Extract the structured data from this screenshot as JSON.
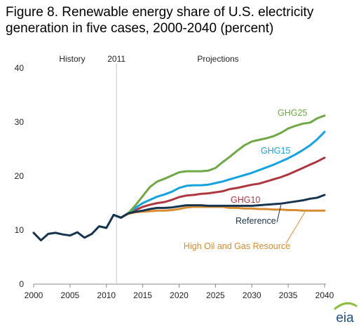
{
  "chart_data": {
    "type": "line",
    "title": "Figure 8. Renewable energy share of U.S. electricity generation in five cases, 2000-2040 (percent)",
    "xlabel": "",
    "ylabel": "",
    "xlim": [
      2000,
      2040
    ],
    "ylim": [
      0,
      40
    ],
    "x_ticks": [
      2000,
      2005,
      2010,
      2015,
      2020,
      2025,
      2030,
      2035,
      2040
    ],
    "y_ticks": [
      0,
      10,
      20,
      30,
      40
    ],
    "grid": false,
    "annotations": {
      "history": "History",
      "divider_year": "2011",
      "projections": "Projections"
    },
    "history": {
      "color": "#17344f",
      "x": [
        2000,
        2001,
        2002,
        2003,
        2004,
        2005,
        2006,
        2007,
        2008,
        2009,
        2010,
        2011
      ],
      "values": [
        9.5,
        8.1,
        9.3,
        9.5,
        9.2,
        9.0,
        9.6,
        8.6,
        9.3,
        10.7,
        10.4,
        12.8
      ]
    },
    "series": [
      {
        "name": "GHG25",
        "color": "#70a845",
        "x": [
          2011,
          2012,
          2013,
          2014,
          2015,
          2016,
          2017,
          2018,
          2019,
          2020,
          2021,
          2022,
          2023,
          2024,
          2025,
          2026,
          2027,
          2028,
          2029,
          2030,
          2031,
          2032,
          2033,
          2034,
          2035,
          2036,
          2037,
          2038,
          2039,
          2040
        ],
        "values": [
          12.8,
          12.3,
          13.1,
          14.6,
          16.3,
          18.0,
          19.0,
          19.5,
          20.1,
          20.7,
          20.9,
          20.9,
          20.9,
          21.0,
          21.5,
          22.6,
          23.6,
          24.7,
          25.7,
          26.4,
          26.7,
          27.0,
          27.4,
          28.0,
          28.8,
          29.3,
          29.7,
          29.9,
          30.7,
          31.2
        ]
      },
      {
        "name": "GHG15",
        "color": "#14a3e0",
        "x": [
          2011,
          2012,
          2013,
          2014,
          2015,
          2016,
          2017,
          2018,
          2019,
          2020,
          2021,
          2022,
          2023,
          2024,
          2025,
          2026,
          2027,
          2028,
          2029,
          2030,
          2031,
          2032,
          2033,
          2034,
          2035,
          2036,
          2037,
          2038,
          2039,
          2040
        ],
        "values": [
          12.8,
          12.3,
          13.1,
          14.1,
          15.0,
          15.6,
          16.2,
          16.6,
          17.1,
          17.8,
          18.2,
          18.3,
          18.3,
          18.4,
          18.7,
          19.0,
          19.4,
          19.8,
          20.2,
          20.6,
          21.1,
          21.6,
          22.1,
          22.7,
          23.3,
          24.0,
          24.8,
          25.7,
          26.8,
          28.2
        ]
      },
      {
        "name": "GHG10",
        "color": "#ad3740",
        "x": [
          2011,
          2012,
          2013,
          2014,
          2015,
          2016,
          2017,
          2018,
          2019,
          2020,
          2021,
          2022,
          2023,
          2024,
          2025,
          2026,
          2027,
          2028,
          2029,
          2030,
          2031,
          2032,
          2033,
          2034,
          2035,
          2036,
          2037,
          2038,
          2039,
          2040
        ],
        "values": [
          12.8,
          12.3,
          13.1,
          13.7,
          14.3,
          14.7,
          15.0,
          15.2,
          15.6,
          16.1,
          16.4,
          16.5,
          16.7,
          16.8,
          17.0,
          17.2,
          17.6,
          17.8,
          18.1,
          18.4,
          18.6,
          19.0,
          19.4,
          19.8,
          20.3,
          20.9,
          21.5,
          22.1,
          22.7,
          23.4
        ]
      },
      {
        "name": "Reference",
        "color": "#17344f",
        "x": [
          2011,
          2012,
          2013,
          2014,
          2015,
          2016,
          2017,
          2018,
          2019,
          2020,
          2021,
          2022,
          2023,
          2024,
          2025,
          2026,
          2027,
          2028,
          2029,
          2030,
          2031,
          2032,
          2033,
          2034,
          2035,
          2036,
          2037,
          2038,
          2039,
          2040
        ],
        "values": [
          12.8,
          12.3,
          13.1,
          13.4,
          13.6,
          13.9,
          14.1,
          14.1,
          14.2,
          14.4,
          14.6,
          14.6,
          14.6,
          14.5,
          14.5,
          14.5,
          14.5,
          14.5,
          14.5,
          14.5,
          14.6,
          14.7,
          14.8,
          14.9,
          15.1,
          15.3,
          15.5,
          15.8,
          16.0,
          16.5
        ]
      },
      {
        "name": "High Oil and Gas Resource",
        "color": "#d98b32",
        "x": [
          2011,
          2012,
          2013,
          2014,
          2015,
          2016,
          2017,
          2018,
          2019,
          2020,
          2021,
          2022,
          2023,
          2024,
          2025,
          2026,
          2027,
          2028,
          2029,
          2030,
          2031,
          2032,
          2033,
          2034,
          2035,
          2036,
          2037,
          2038,
          2039,
          2040
        ],
        "values": [
          12.8,
          12.3,
          13.0,
          13.3,
          13.4,
          13.5,
          13.6,
          13.6,
          13.7,
          13.9,
          14.2,
          14.3,
          14.3,
          14.3,
          14.3,
          14.3,
          14.1,
          14.1,
          14.0,
          14.0,
          13.9,
          13.9,
          13.8,
          13.8,
          13.7,
          13.7,
          13.6,
          13.6,
          13.6,
          13.6
        ]
      }
    ]
  },
  "logo": {
    "text": "eia",
    "color": "#1a4e86",
    "accent_color": "#8cbf3f"
  }
}
